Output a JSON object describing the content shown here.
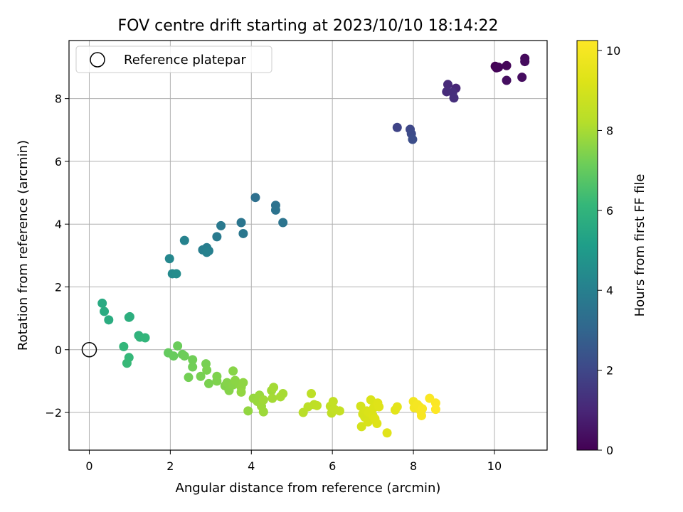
{
  "chart_data": {
    "type": "scatter",
    "title": "FOV centre drift starting at 2023/10/10 18:14:22",
    "xlabel": "Angular distance from reference (arcmin)",
    "ylabel": "Rotation from reference (arcmin)",
    "xlim": [
      -0.5,
      11.3
    ],
    "ylim": [
      -3.2,
      9.85
    ],
    "xticks": [
      0,
      2,
      4,
      6,
      8,
      10
    ],
    "yticks": [
      -2,
      0,
      2,
      4,
      6,
      8
    ],
    "grid": true,
    "legend": {
      "location": "top-left",
      "entries": [
        "Reference platepar"
      ]
    },
    "reference_point": {
      "x": 0,
      "y": 0
    },
    "colorbar": {
      "label": "Hours from first FF file",
      "colormap": "viridis",
      "range": [
        0,
        10.25
      ],
      "ticks": [
        0,
        2,
        4,
        6,
        8,
        10
      ]
    },
    "points": [
      {
        "x": 10.02,
        "y": 9.03,
        "h": 0.0
      },
      {
        "x": 10.05,
        "y": 8.98,
        "h": 0.05
      },
      {
        "x": 10.1,
        "y": 9.0,
        "h": 0.1
      },
      {
        "x": 10.3,
        "y": 9.05,
        "h": 0.15
      },
      {
        "x": 10.75,
        "y": 9.28,
        "h": 0.2
      },
      {
        "x": 10.75,
        "y": 9.18,
        "h": 0.25
      },
      {
        "x": 10.68,
        "y": 8.68,
        "h": 0.3
      },
      {
        "x": 10.3,
        "y": 8.58,
        "h": 0.35
      },
      {
        "x": 9.05,
        "y": 8.33,
        "h": 1.0
      },
      {
        "x": 8.85,
        "y": 8.45,
        "h": 1.1
      },
      {
        "x": 8.82,
        "y": 8.22,
        "h": 1.15
      },
      {
        "x": 8.97,
        "y": 8.2,
        "h": 1.2
      },
      {
        "x": 9.0,
        "y": 8.02,
        "h": 1.25
      },
      {
        "x": 7.6,
        "y": 7.08,
        "h": 1.9
      },
      {
        "x": 7.92,
        "y": 7.02,
        "h": 2.0
      },
      {
        "x": 7.95,
        "y": 6.88,
        "h": 2.1
      },
      {
        "x": 7.98,
        "y": 6.7,
        "h": 2.2
      },
      {
        "x": 4.1,
        "y": 4.85,
        "h": 3.4
      },
      {
        "x": 4.6,
        "y": 4.6,
        "h": 3.45
      },
      {
        "x": 4.6,
        "y": 4.45,
        "h": 3.5
      },
      {
        "x": 4.78,
        "y": 4.05,
        "h": 3.55
      },
      {
        "x": 3.75,
        "y": 4.05,
        "h": 3.6
      },
      {
        "x": 3.8,
        "y": 3.7,
        "h": 3.65
      },
      {
        "x": 3.25,
        "y": 3.95,
        "h": 3.75
      },
      {
        "x": 3.15,
        "y": 3.6,
        "h": 3.8
      },
      {
        "x": 2.9,
        "y": 3.25,
        "h": 3.9
      },
      {
        "x": 2.8,
        "y": 3.18,
        "h": 3.95
      },
      {
        "x": 2.95,
        "y": 3.15,
        "h": 4.0
      },
      {
        "x": 2.9,
        "y": 3.1,
        "h": 4.05
      },
      {
        "x": 2.35,
        "y": 3.48,
        "h": 4.1
      },
      {
        "x": 1.98,
        "y": 2.9,
        "h": 4.3
      },
      {
        "x": 2.05,
        "y": 2.42,
        "h": 4.4
      },
      {
        "x": 2.15,
        "y": 2.42,
        "h": 4.45
      },
      {
        "x": 0.32,
        "y": 1.48,
        "h": 5.6
      },
      {
        "x": 0.37,
        "y": 1.22,
        "h": 5.65
      },
      {
        "x": 0.48,
        "y": 0.95,
        "h": 5.7
      },
      {
        "x": 1.0,
        "y": 1.05,
        "h": 5.75
      },
      {
        "x": 0.98,
        "y": 1.03,
        "h": 5.8
      },
      {
        "x": 1.22,
        "y": 0.45,
        "h": 5.9
      },
      {
        "x": 1.25,
        "y": 0.4,
        "h": 6.0
      },
      {
        "x": 1.38,
        "y": 0.38,
        "h": 6.05
      },
      {
        "x": 0.85,
        "y": 0.1,
        "h": 6.1
      },
      {
        "x": 0.98,
        "y": -0.25,
        "h": 6.15
      },
      {
        "x": 0.93,
        "y": -0.43,
        "h": 6.2
      },
      {
        "x": 1.95,
        "y": -0.1,
        "h": 7.0
      },
      {
        "x": 2.08,
        "y": -0.2,
        "h": 7.05
      },
      {
        "x": 2.18,
        "y": 0.12,
        "h": 7.1
      },
      {
        "x": 2.3,
        "y": -0.15,
        "h": 7.1
      },
      {
        "x": 2.35,
        "y": -0.2,
        "h": 7.15
      },
      {
        "x": 2.55,
        "y": -0.32,
        "h": 7.2
      },
      {
        "x": 2.55,
        "y": -0.55,
        "h": 7.2
      },
      {
        "x": 2.45,
        "y": -0.88,
        "h": 7.25
      },
      {
        "x": 2.75,
        "y": -0.85,
        "h": 7.3
      },
      {
        "x": 2.88,
        "y": -0.45,
        "h": 7.3
      },
      {
        "x": 2.9,
        "y": -0.65,
        "h": 7.35
      },
      {
        "x": 2.95,
        "y": -1.08,
        "h": 7.35
      },
      {
        "x": 3.15,
        "y": -1.0,
        "h": 7.4
      },
      {
        "x": 3.15,
        "y": -0.85,
        "h": 7.4
      },
      {
        "x": 3.35,
        "y": -1.15,
        "h": 7.45
      },
      {
        "x": 3.4,
        "y": -1.05,
        "h": 7.5
      },
      {
        "x": 3.45,
        "y": -1.3,
        "h": 7.5
      },
      {
        "x": 3.55,
        "y": -1.12,
        "h": 7.55
      },
      {
        "x": 3.55,
        "y": -0.68,
        "h": 7.55
      },
      {
        "x": 3.6,
        "y": -0.98,
        "h": 7.6
      },
      {
        "x": 3.7,
        "y": -1.1,
        "h": 7.6
      },
      {
        "x": 3.75,
        "y": -1.2,
        "h": 7.65
      },
      {
        "x": 3.8,
        "y": -1.05,
        "h": 7.65
      },
      {
        "x": 3.75,
        "y": -1.35,
        "h": 7.7
      },
      {
        "x": 3.92,
        "y": -1.95,
        "h": 7.7
      },
      {
        "x": 4.05,
        "y": -1.55,
        "h": 7.75
      },
      {
        "x": 4.15,
        "y": -1.65,
        "h": 7.8
      },
      {
        "x": 4.2,
        "y": -1.45,
        "h": 7.8
      },
      {
        "x": 4.25,
        "y": -1.8,
        "h": 7.85
      },
      {
        "x": 4.3,
        "y": -1.98,
        "h": 7.85
      },
      {
        "x": 4.3,
        "y": -1.6,
        "h": 7.9
      },
      {
        "x": 4.5,
        "y": -1.3,
        "h": 7.9
      },
      {
        "x": 4.55,
        "y": -1.2,
        "h": 7.95
      },
      {
        "x": 4.52,
        "y": -1.55,
        "h": 7.95
      },
      {
        "x": 4.72,
        "y": -1.5,
        "h": 8.0
      },
      {
        "x": 4.78,
        "y": -1.4,
        "h": 8.0
      },
      {
        "x": 5.28,
        "y": -2.0,
        "h": 8.3
      },
      {
        "x": 5.4,
        "y": -1.82,
        "h": 8.35
      },
      {
        "x": 5.48,
        "y": -1.4,
        "h": 8.4
      },
      {
        "x": 5.55,
        "y": -1.75,
        "h": 8.4
      },
      {
        "x": 5.62,
        "y": -1.78,
        "h": 8.45
      },
      {
        "x": 5.95,
        "y": -1.8,
        "h": 8.5
      },
      {
        "x": 5.98,
        "y": -2.02,
        "h": 8.5
      },
      {
        "x": 6.02,
        "y": -1.65,
        "h": 8.55
      },
      {
        "x": 6.05,
        "y": -1.9,
        "h": 8.55
      },
      {
        "x": 6.18,
        "y": -1.95,
        "h": 8.6
      },
      {
        "x": 6.7,
        "y": -1.8,
        "h": 9.0
      },
      {
        "x": 6.72,
        "y": -2.45,
        "h": 9.0
      },
      {
        "x": 6.75,
        "y": -2.05,
        "h": 9.05
      },
      {
        "x": 6.8,
        "y": -2.15,
        "h": 9.05
      },
      {
        "x": 6.85,
        "y": -1.95,
        "h": 9.1
      },
      {
        "x": 6.88,
        "y": -2.3,
        "h": 9.1
      },
      {
        "x": 6.9,
        "y": -2.0,
        "h": 9.15
      },
      {
        "x": 6.95,
        "y": -1.6,
        "h": 9.15
      },
      {
        "x": 7.0,
        "y": -2.1,
        "h": 9.2
      },
      {
        "x": 7.02,
        "y": -1.85,
        "h": 9.2
      },
      {
        "x": 7.05,
        "y": -2.2,
        "h": 9.25
      },
      {
        "x": 7.1,
        "y": -2.35,
        "h": 9.25
      },
      {
        "x": 7.12,
        "y": -1.7,
        "h": 9.3
      },
      {
        "x": 7.15,
        "y": -1.82,
        "h": 9.3
      },
      {
        "x": 7.35,
        "y": -2.65,
        "h": 9.35
      },
      {
        "x": 7.55,
        "y": -1.92,
        "h": 9.4
      },
      {
        "x": 7.6,
        "y": -1.82,
        "h": 9.45
      },
      {
        "x": 8.0,
        "y": -1.65,
        "h": 9.9
      },
      {
        "x": 8.02,
        "y": -1.85,
        "h": 9.95
      },
      {
        "x": 8.1,
        "y": -1.75,
        "h": 10.0
      },
      {
        "x": 8.15,
        "y": -1.82,
        "h": 10.0
      },
      {
        "x": 8.18,
        "y": -1.95,
        "h": 10.05
      },
      {
        "x": 8.2,
        "y": -2.1,
        "h": 10.05
      },
      {
        "x": 8.22,
        "y": -1.88,
        "h": 10.1
      },
      {
        "x": 8.4,
        "y": -1.55,
        "h": 10.15
      },
      {
        "x": 8.55,
        "y": -1.7,
        "h": 10.2
      },
      {
        "x": 8.55,
        "y": -1.9,
        "h": 10.25
      }
    ]
  }
}
